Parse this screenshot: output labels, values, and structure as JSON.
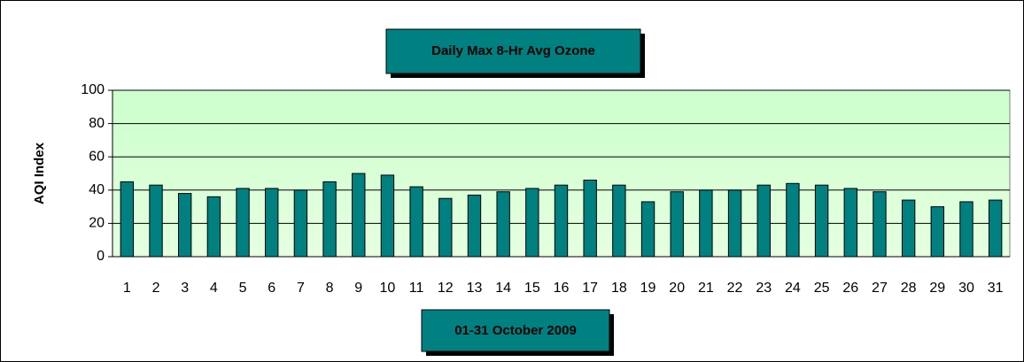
{
  "chart_data": {
    "type": "bar",
    "title": "Daily Max 8-Hr Avg Ozone",
    "x_label": "01-31 October 2009",
    "y_label": "AQI Index",
    "categories": [
      "1",
      "2",
      "3",
      "4",
      "5",
      "6",
      "7",
      "8",
      "9",
      "10",
      "11",
      "12",
      "13",
      "14",
      "15",
      "16",
      "17",
      "18",
      "19",
      "20",
      "21",
      "22",
      "23",
      "24",
      "25",
      "26",
      "27",
      "28",
      "29",
      "30",
      "31"
    ],
    "values": [
      45,
      43,
      38,
      36,
      41,
      41,
      40,
      45,
      50,
      49,
      42,
      35,
      37,
      39,
      41,
      43,
      46,
      43,
      33,
      39,
      40,
      40,
      43,
      44,
      43,
      41,
      39,
      34,
      30,
      33,
      34
    ],
    "color": "#008080",
    "ylim": [
      0,
      100
    ],
    "yticks": [
      0,
      20,
      40,
      60,
      80,
      100
    ],
    "grid": true
  }
}
